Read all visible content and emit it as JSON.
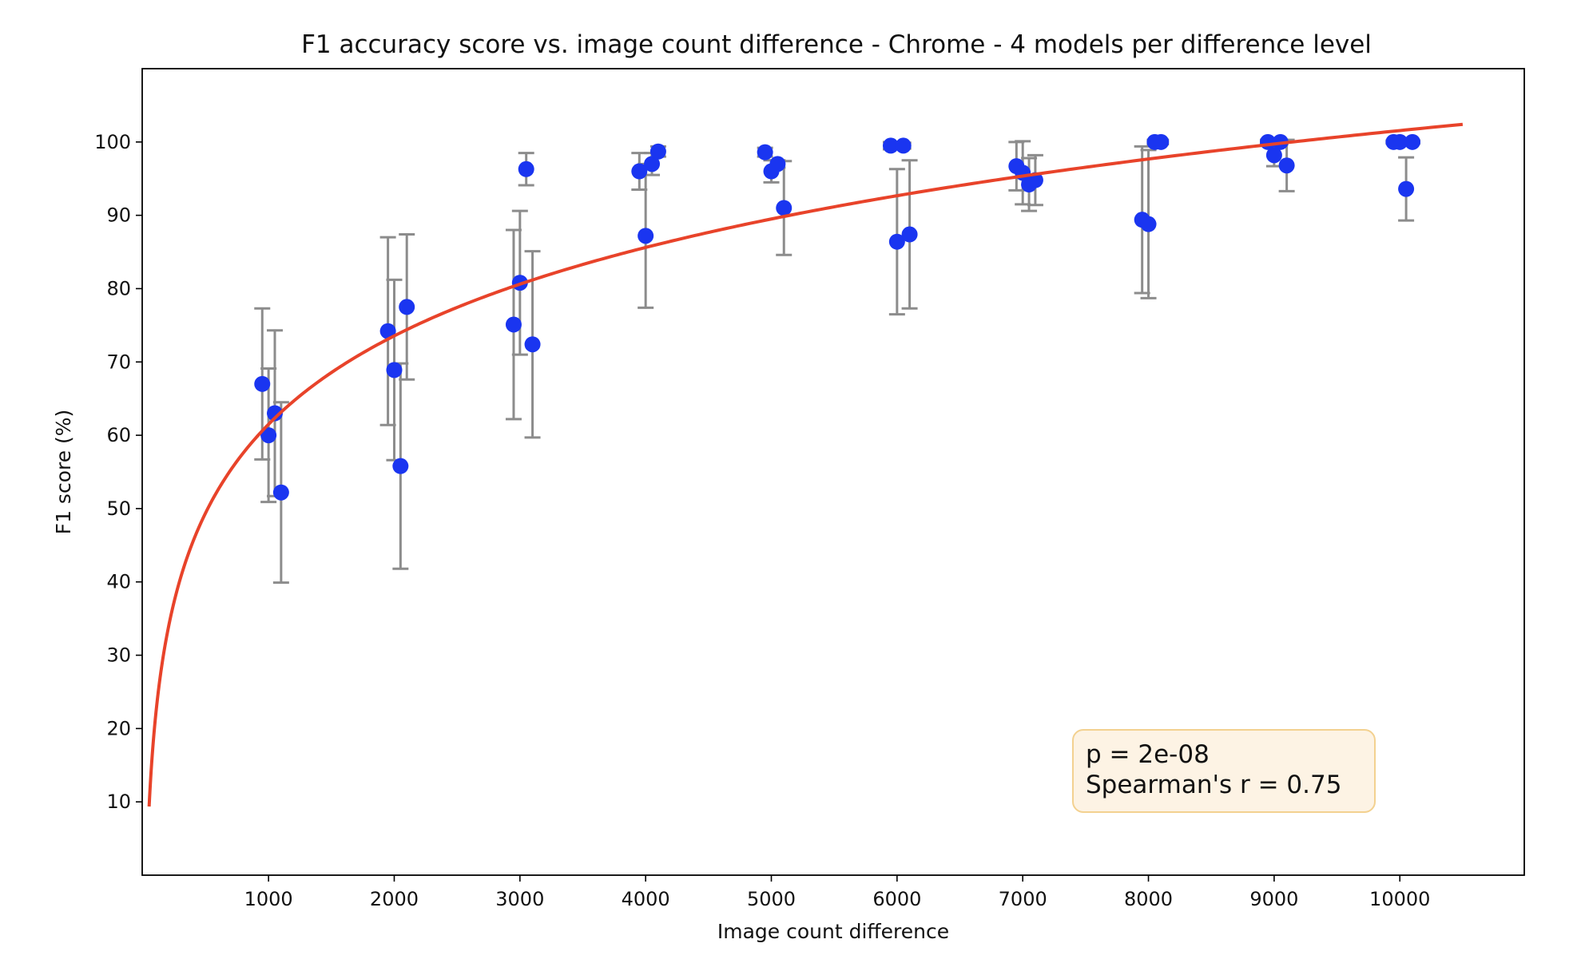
{
  "chart_data": {
    "type": "scatter",
    "title": "F1 accuracy score vs. image count difference - Chrome - 4 models per difference level",
    "xlabel": "Image count difference",
    "ylabel": "F1 score (%)",
    "xlim": [
      -5,
      10990
    ],
    "ylim": [
      0,
      110
    ],
    "xticks": [
      1000,
      2000,
      3000,
      4000,
      5000,
      6000,
      7000,
      8000,
      9000,
      10000
    ],
    "yticks": [
      10,
      20,
      30,
      40,
      50,
      60,
      70,
      80,
      90,
      100
    ],
    "grid": false,
    "colors": {
      "points": "#1a35f0",
      "errorbars": "#8c8c8c",
      "fit": "#e8432a",
      "box_fill": "#fdf3e4",
      "box_edge": "#f3d190"
    },
    "points": [
      {
        "x": 950,
        "y": 67.0,
        "err": 10.3
      },
      {
        "x": 1000,
        "y": 60.0,
        "err": 9.1
      },
      {
        "x": 1050,
        "y": 63.0,
        "err": 11.3
      },
      {
        "x": 1100,
        "y": 52.2,
        "err": 12.3
      },
      {
        "x": 1950,
        "y": 74.2,
        "err": 12.8
      },
      {
        "x": 2000,
        "y": 68.9,
        "err": 12.3
      },
      {
        "x": 2050,
        "y": 55.8,
        "err": 14.0
      },
      {
        "x": 2100,
        "y": 77.5,
        "err": 9.9
      },
      {
        "x": 2950,
        "y": 75.1,
        "err": 12.9
      },
      {
        "x": 3000,
        "y": 80.8,
        "err": 9.8
      },
      {
        "x": 3050,
        "y": 96.3,
        "err": 2.2
      },
      {
        "x": 3100,
        "y": 72.4,
        "err": 12.7
      },
      {
        "x": 3950,
        "y": 96.0,
        "err": 2.5
      },
      {
        "x": 4000,
        "y": 87.2,
        "err": 9.8
      },
      {
        "x": 4050,
        "y": 97.0,
        "err": 1.5
      },
      {
        "x": 4100,
        "y": 98.7,
        "err": 0.7
      },
      {
        "x": 4950,
        "y": 98.6,
        "err": 0.6
      },
      {
        "x": 5000,
        "y": 96.0,
        "err": 1.5
      },
      {
        "x": 5050,
        "y": 97.0,
        "err": 0.5
      },
      {
        "x": 5100,
        "y": 91.0,
        "err": 6.4
      },
      {
        "x": 5950,
        "y": 99.5,
        "err": 0.5
      },
      {
        "x": 6000,
        "y": 86.4,
        "err": 9.9
      },
      {
        "x": 6050,
        "y": 99.5,
        "err": 0.4
      },
      {
        "x": 6100,
        "y": 87.4,
        "err": 10.1
      },
      {
        "x": 6950,
        "y": 96.7,
        "err": 3.3
      },
      {
        "x": 7000,
        "y": 95.8,
        "err": 4.3
      },
      {
        "x": 7050,
        "y": 94.2,
        "err": 3.6
      },
      {
        "x": 7100,
        "y": 94.8,
        "err": 3.4
      },
      {
        "x": 7950,
        "y": 89.4,
        "err": 10.0
      },
      {
        "x": 8000,
        "y": 88.8,
        "err": 10.1
      },
      {
        "x": 8050,
        "y": 100.0,
        "err": 0.3
      },
      {
        "x": 8100,
        "y": 100.0,
        "err": 0.3
      },
      {
        "x": 8950,
        "y": 100.0,
        "err": 0.3
      },
      {
        "x": 9000,
        "y": 98.2,
        "err": 1.5
      },
      {
        "x": 9050,
        "y": 100.0,
        "err": 0.3
      },
      {
        "x": 9100,
        "y": 96.8,
        "err": 3.5
      },
      {
        "x": 9950,
        "y": 100.0,
        "err": 0.2
      },
      {
        "x": 10000,
        "y": 100.0,
        "err": 0.2
      },
      {
        "x": 10050,
        "y": 93.6,
        "err": 4.3
      },
      {
        "x": 10100,
        "y": 100.0,
        "err": 0.2
      }
    ],
    "fit_curve": {
      "type": "logarithmic",
      "a": 17.4,
      "b": -58.7,
      "x_range": [
        50,
        10500
      ]
    },
    "stats_box": {
      "line1": "p = 2e-08",
      "line2": "Spearman's r = 0.75",
      "placement": "bottom-right"
    }
  }
}
